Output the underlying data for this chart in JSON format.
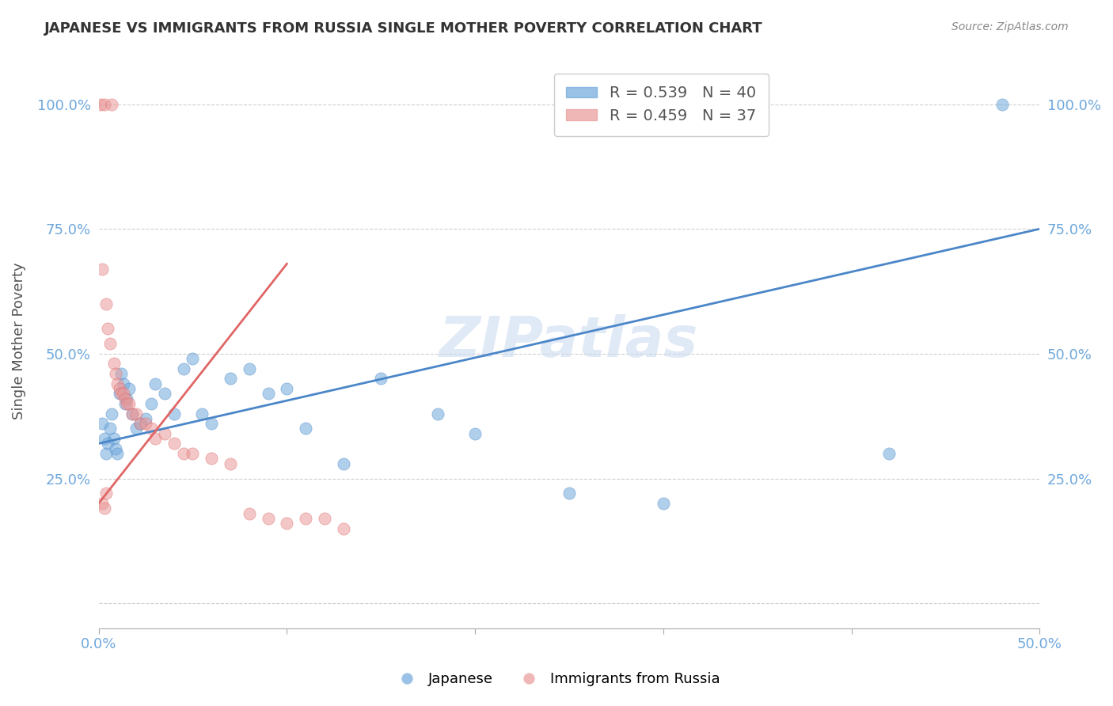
{
  "title": "JAPANESE VS IMMIGRANTS FROM RUSSIA SINGLE MOTHER POVERTY CORRELATION CHART",
  "source": "Source: ZipAtlas.com",
  "xlabel": "",
  "ylabel": "Single Mother Poverty",
  "xlim": [
    0,
    0.5
  ],
  "ylim": [
    -0.05,
    1.1
  ],
  "yticks": [
    0.0,
    0.25,
    0.5,
    0.75,
    1.0
  ],
  "ytick_labels": [
    "",
    "25.0%",
    "50.0%",
    "75.0%",
    "100.0%"
  ],
  "xticks": [
    0.0,
    0.1,
    0.2,
    0.3,
    0.4,
    0.5
  ],
  "xtick_labels": [
    "0.0%",
    "",
    "",
    "",
    "",
    "50.0%"
  ],
  "legend_r1": "R = 0.539   N = 40",
  "legend_r2": "R = 0.459   N = 37",
  "watermark": "ZIPatlas",
  "blue_color": "#6fa8dc",
  "pink_color": "#ea9999",
  "blue_line_color": "#4a86c8",
  "pink_line_color": "#e06666",
  "grid_color": "#d0d0d0",
  "japanese_scatter": [
    [
      0.002,
      0.36
    ],
    [
      0.003,
      0.33
    ],
    [
      0.004,
      0.3
    ],
    [
      0.005,
      0.32
    ],
    [
      0.006,
      0.35
    ],
    [
      0.007,
      0.38
    ],
    [
      0.008,
      0.33
    ],
    [
      0.009,
      0.31
    ],
    [
      0.01,
      0.3
    ],
    [
      0.011,
      0.42
    ],
    [
      0.012,
      0.46
    ],
    [
      0.013,
      0.44
    ],
    [
      0.014,
      0.4
    ],
    [
      0.015,
      0.41
    ],
    [
      0.016,
      0.43
    ],
    [
      0.018,
      0.38
    ],
    [
      0.02,
      0.35
    ],
    [
      0.022,
      0.36
    ],
    [
      0.025,
      0.37
    ],
    [
      0.028,
      0.4
    ],
    [
      0.03,
      0.44
    ],
    [
      0.035,
      0.42
    ],
    [
      0.04,
      0.38
    ],
    [
      0.045,
      0.47
    ],
    [
      0.05,
      0.49
    ],
    [
      0.055,
      0.38
    ],
    [
      0.06,
      0.36
    ],
    [
      0.07,
      0.45
    ],
    [
      0.08,
      0.47
    ],
    [
      0.09,
      0.42
    ],
    [
      0.1,
      0.43
    ],
    [
      0.11,
      0.35
    ],
    [
      0.13,
      0.28
    ],
    [
      0.15,
      0.45
    ],
    [
      0.18,
      0.38
    ],
    [
      0.2,
      0.34
    ],
    [
      0.25,
      0.22
    ],
    [
      0.3,
      0.2
    ],
    [
      0.42,
      0.3
    ],
    [
      0.48,
      1.0
    ]
  ],
  "russia_scatter": [
    [
      0.001,
      1.0
    ],
    [
      0.003,
      1.0
    ],
    [
      0.007,
      1.0
    ],
    [
      0.002,
      0.67
    ],
    [
      0.004,
      0.6
    ],
    [
      0.005,
      0.55
    ],
    [
      0.006,
      0.52
    ],
    [
      0.008,
      0.48
    ],
    [
      0.009,
      0.46
    ],
    [
      0.01,
      0.44
    ],
    [
      0.011,
      0.43
    ],
    [
      0.012,
      0.42
    ],
    [
      0.013,
      0.42
    ],
    [
      0.014,
      0.41
    ],
    [
      0.015,
      0.4
    ],
    [
      0.016,
      0.4
    ],
    [
      0.018,
      0.38
    ],
    [
      0.02,
      0.38
    ],
    [
      0.022,
      0.36
    ],
    [
      0.025,
      0.36
    ],
    [
      0.028,
      0.35
    ],
    [
      0.03,
      0.33
    ],
    [
      0.035,
      0.34
    ],
    [
      0.04,
      0.32
    ],
    [
      0.045,
      0.3
    ],
    [
      0.05,
      0.3
    ],
    [
      0.06,
      0.29
    ],
    [
      0.07,
      0.28
    ],
    [
      0.08,
      0.18
    ],
    [
      0.09,
      0.17
    ],
    [
      0.1,
      0.16
    ],
    [
      0.11,
      0.17
    ],
    [
      0.12,
      0.17
    ],
    [
      0.13,
      0.15
    ],
    [
      0.002,
      0.2
    ],
    [
      0.003,
      0.19
    ],
    [
      0.004,
      0.22
    ]
  ],
  "blue_trend_x": [
    0.0,
    0.5
  ],
  "blue_trend_y": [
    0.32,
    0.75
  ],
  "pink_trend_x": [
    0.0,
    0.1
  ],
  "pink_trend_y": [
    0.2,
    0.68
  ]
}
